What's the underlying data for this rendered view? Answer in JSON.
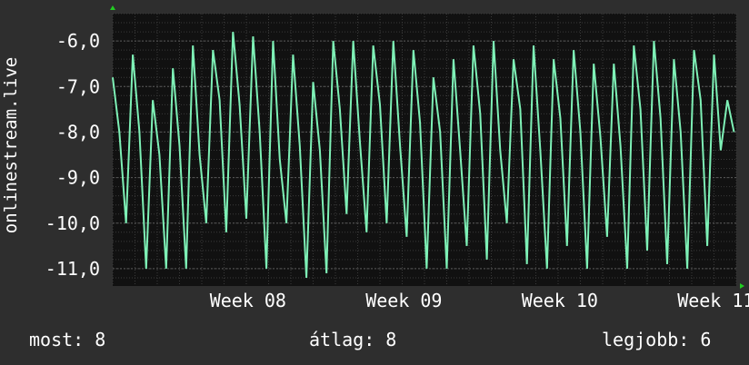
{
  "chart_data": {
    "type": "line",
    "ylabel": "onlinestream.live",
    "yticks": [
      -6.0,
      -7.0,
      -8.0,
      -9.0,
      -10.0,
      -11.0
    ],
    "ytick_labels": [
      "-6,0",
      "-7,0",
      "-8,0",
      "-9,0",
      "-10,0",
      "-11,0"
    ],
    "ylim": [
      -11.38,
      -5.4
    ],
    "xlim": [
      0,
      28
    ],
    "xtick_positions": [
      7.3,
      14.3,
      21.3,
      28.3
    ],
    "xtick_labels": [
      "Week 08",
      "Week 09",
      "Week 10",
      "Week 11"
    ],
    "grid": true,
    "series": [
      {
        "color": "#7ef0b6",
        "x": [
          0.0,
          0.3,
          0.6,
          0.9,
          1.2,
          1.5,
          1.8,
          2.1,
          2.4,
          2.7,
          3.0,
          3.3,
          3.6,
          3.9,
          4.2,
          4.5,
          4.8,
          5.1,
          5.4,
          5.7,
          6.0,
          6.3,
          6.6,
          6.9,
          7.2,
          7.5,
          7.8,
          8.1,
          8.4,
          8.7,
          9.0,
          9.3,
          9.6,
          9.9,
          10.2,
          10.5,
          10.8,
          11.1,
          11.4,
          11.7,
          12.0,
          12.3,
          12.6,
          12.9,
          13.2,
          13.5,
          13.8,
          14.1,
          14.4,
          14.7,
          15.0,
          15.3,
          15.6,
          15.9,
          16.2,
          16.5,
          16.8,
          17.1,
          17.4,
          17.7,
          18.0,
          18.3,
          18.6,
          18.9,
          19.2,
          19.5,
          19.8,
          20.1,
          20.4,
          20.7,
          21.0,
          21.3,
          21.6,
          21.9,
          22.2,
          22.5,
          22.8,
          23.1,
          23.4,
          23.7,
          24.0,
          24.3,
          24.6,
          24.9,
          25.2,
          25.5,
          25.8,
          26.1,
          26.4,
          26.7,
          27.0,
          27.3,
          27.6,
          27.9
        ],
        "y": [
          -6.8,
          -8.0,
          -10.0,
          -6.3,
          -8.0,
          -11.0,
          -7.3,
          -8.5,
          -11.0,
          -6.6,
          -8.3,
          -11.0,
          -6.1,
          -8.5,
          -10.0,
          -6.2,
          -7.3,
          -10.2,
          -5.8,
          -7.4,
          -9.9,
          -5.9,
          -8.0,
          -11.0,
          -6.0,
          -8.6,
          -10.0,
          -6.3,
          -8.3,
          -11.2,
          -6.9,
          -8.4,
          -11.1,
          -6.0,
          -7.5,
          -9.8,
          -6.0,
          -8.2,
          -10.2,
          -6.1,
          -7.4,
          -10.0,
          -6.0,
          -8.3,
          -10.3,
          -6.2,
          -7.8,
          -11.0,
          -6.8,
          -8.0,
          -11.0,
          -6.4,
          -8.4,
          -10.5,
          -6.1,
          -7.6,
          -10.8,
          -6.0,
          -8.4,
          -10.0,
          -6.4,
          -7.5,
          -10.9,
          -6.1,
          -8.4,
          -11.0,
          -6.4,
          -7.7,
          -10.5,
          -6.2,
          -8.0,
          -11.0,
          -6.5,
          -8.1,
          -10.3,
          -6.5,
          -8.3,
          -11.0,
          -6.1,
          -7.5,
          -10.6,
          -6.0,
          -7.7,
          -10.9,
          -6.4,
          -8.0,
          -11.0,
          -6.2,
          -7.3,
          -10.5,
          -6.3,
          -8.4,
          -7.3,
          -8.0
        ]
      }
    ]
  },
  "footer": {
    "current_label": "most:",
    "current_value": "8",
    "avg_label": "átlag:",
    "avg_value": "8",
    "best_label": "legjobb:",
    "best_value": "6"
  },
  "colors": {
    "background": "#2e2e2e",
    "plot": "#111111",
    "grid": "#444444",
    "line": "#7ef0b6",
    "axis_arrow": "#22cc22",
    "text": "#ffffff"
  }
}
